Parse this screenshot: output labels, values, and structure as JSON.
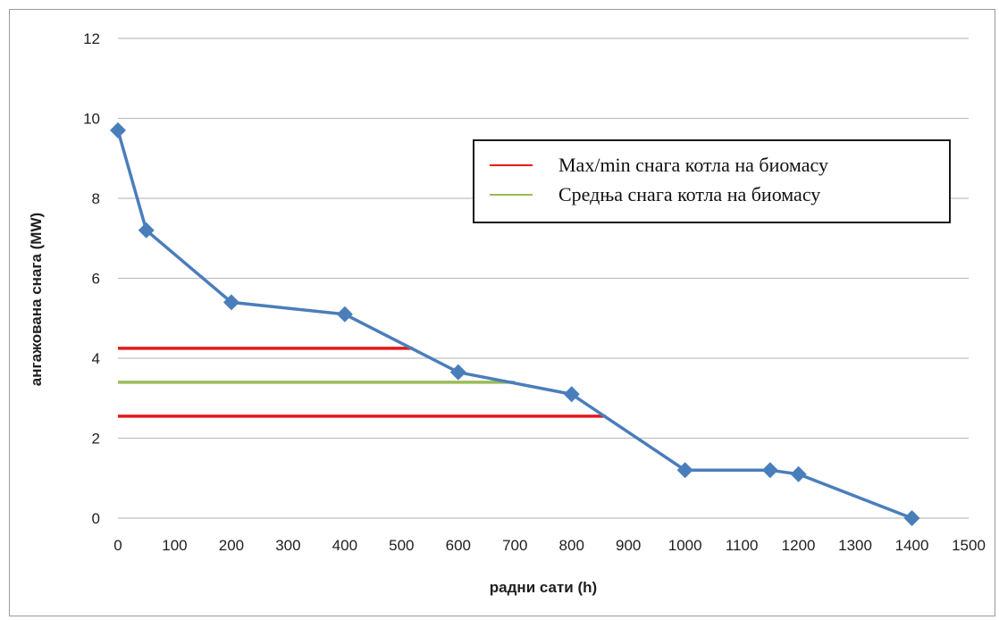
{
  "chart_data": {
    "type": "line",
    "xlabel": "радни сати (h)",
    "ylabel": "ангажована снага (MW)",
    "xlim": [
      0,
      1500
    ],
    "ylim": [
      0,
      12
    ],
    "xticks": [
      0,
      100,
      200,
      300,
      400,
      500,
      600,
      700,
      800,
      900,
      1000,
      1100,
      1200,
      1300,
      1400,
      1500
    ],
    "yticks": [
      0,
      2,
      4,
      6,
      8,
      10,
      12
    ],
    "grid": "horizontal",
    "legend_position": "upper-right",
    "series": [
      {
        "color": "#4a7ebb",
        "marker": "diamond",
        "x": [
          0,
          50,
          200,
          400,
          600,
          800,
          1000,
          1150,
          1200,
          1400
        ],
        "y": [
          9.7,
          7.2,
          5.4,
          5.1,
          3.65,
          3.1,
          1.2,
          1.2,
          1.1,
          0.0
        ]
      }
    ],
    "reference_lines": [
      {
        "name": "Max/min  снага котла на биомасу",
        "color": "#e41a1c",
        "y": 4.25,
        "x": [
          0,
          520
        ]
      },
      {
        "name": "Max/min  снага котла на биомасу",
        "color": "#e41a1c",
        "y": 2.55,
        "x": [
          0,
          860
        ]
      },
      {
        "name": "Средња снага котла на биомасу",
        "color": "#9bbb59",
        "y": 3.4,
        "x": [
          0,
          700
        ]
      }
    ],
    "legend": [
      {
        "label": "Max/min  снага котла на биомасу",
        "color": "#e41a1c"
      },
      {
        "label": "Средња снага котла на биомасу",
        "color": "#9bbb59"
      }
    ]
  }
}
